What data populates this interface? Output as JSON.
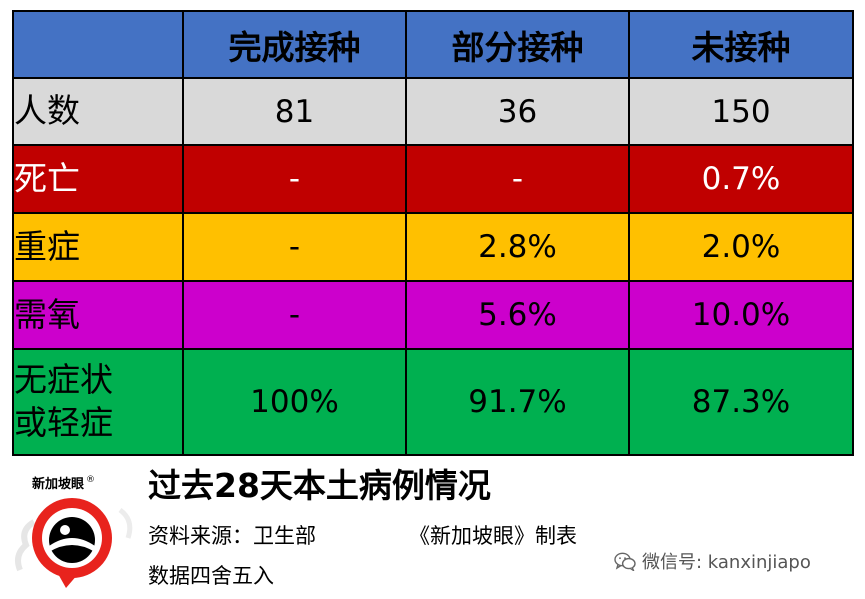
{
  "table": {
    "headers": [
      "",
      "完成接种",
      "部分接种",
      "未接种"
    ],
    "rows": [
      {
        "label": "人数",
        "values": [
          "81",
          "36",
          "150"
        ]
      },
      {
        "label": "死亡",
        "values": [
          "-",
          "-",
          "0.7%"
        ]
      },
      {
        "label": "重症",
        "values": [
          "-",
          "2.8%",
          "2.0%"
        ]
      },
      {
        "label": "需氧",
        "values": [
          "-",
          "5.6%",
          "10.0%"
        ]
      },
      {
        "label_line1": "无症状",
        "label_line2": "或轻症",
        "values": [
          "100%",
          "91.7%",
          "87.3%"
        ]
      }
    ]
  },
  "colors": {
    "header": "#4472c4",
    "row_count": "#d9d9d9",
    "row_death": "#c00000",
    "row_severe": "#ffc000",
    "row_oxygen": "#cc00cc",
    "row_mild": "#00b050"
  },
  "logo": {
    "text": "新加坡眼",
    "mark": "®"
  },
  "caption": {
    "title": "过去28天本土病例情况",
    "source": "资料来源：卫生部",
    "maker": "《新加坡眼》制表",
    "rounding": "数据四舍五入"
  },
  "watermark": {
    "icon": "wechat-icon",
    "text": "微信号: kanxinjiapo"
  }
}
